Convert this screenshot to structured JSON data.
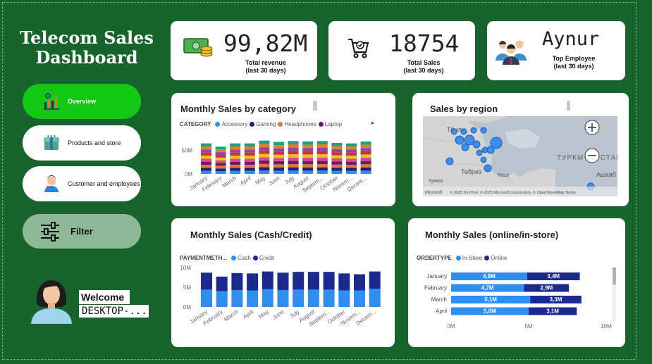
{
  "sidebar": {
    "title_line1": "Telecom Sales",
    "title_line2": "Dashboard",
    "nav": [
      {
        "label": "Overview"
      },
      {
        "label": "Products and store"
      },
      {
        "label": "Customer and employees"
      }
    ],
    "filter_label": "Filter",
    "welcome": "Welcome",
    "user": "DESKTOP-..."
  },
  "kpis": [
    {
      "value": "99,82M",
      "label_line1": "Total revenue",
      "label_line2": "(last 30 days)"
    },
    {
      "value": "18754",
      "label_line1": "Total Sales",
      "label_line2": "(last 30 days)"
    },
    {
      "value": "Aynur",
      "label_line1": "Top Employee",
      "label_line2": "(last 30 days)"
    }
  ],
  "colors": {
    "background": "#17652c",
    "active_nav": "#13c813",
    "filter": "#8fb996",
    "accessory": "#2e8ff0",
    "gaming": "#1a237e",
    "headphones": "#e8703a",
    "laptop": "#6a1b6a",
    "cash": "#2e8ff0",
    "credit": "#1a2a8f",
    "instore": "#2e8ff0",
    "online": "#1a2a8f"
  },
  "chart_data": [
    {
      "type": "bar",
      "title": "Monthly Sales by category",
      "legend_title": "CATEGORY",
      "legend": [
        "Accessory",
        "Gaming",
        "Headphones",
        "Laptop"
      ],
      "categories": [
        "January",
        "February",
        "March",
        "April",
        "May",
        "June",
        "July",
        "August",
        "Septem...",
        "October",
        "Novem...",
        "Decem..."
      ],
      "values": [
        65,
        58,
        65,
        65,
        71,
        68,
        70,
        69,
        70,
        66,
        65,
        69
      ],
      "ylabels": [
        "50M",
        "0M"
      ],
      "ylim": [
        0,
        75
      ],
      "stacked": true
    },
    {
      "type": "bar",
      "title": "Monthly Sales (Cash/Credit)",
      "legend_title": "PAYMENTMETH...",
      "legend": [
        "Cash",
        "Credit"
      ],
      "categories": [
        "January",
        "February",
        "March",
        "April",
        "May",
        "June",
        "July",
        "August",
        "Septem...",
        "October",
        "Novem...",
        "Decem..."
      ],
      "series": [
        {
          "name": "Cash",
          "values": [
            4.4,
            4.0,
            4.3,
            4.2,
            4.5,
            4.3,
            4.4,
            4.4,
            4.4,
            4.2,
            4.2,
            4.6
          ]
        },
        {
          "name": "Credit",
          "values": [
            4.3,
            3.7,
            4.3,
            4.3,
            4.5,
            4.4,
            4.5,
            4.5,
            4.5,
            4.3,
            4.1,
            4.4
          ]
        }
      ],
      "ylabels": [
        "10M",
        "5M",
        "0M"
      ],
      "ylim": [
        0,
        10
      ],
      "stacked": true
    },
    {
      "type": "bar",
      "orientation": "horizontal",
      "title": "Monthly Sales (online/in-store)",
      "legend_title": "ORDERTYPE",
      "legend": [
        "In-Store",
        "Online"
      ],
      "categories": [
        "January",
        "February",
        "March",
        "April"
      ],
      "series": [
        {
          "name": "In-Store",
          "values": [
            4.9,
            4.7,
            5.1,
            5.0
          ],
          "labels": [
            "4,9M",
            "4,7M",
            "5,1M",
            "5,0M"
          ]
        },
        {
          "name": "Online",
          "values": [
            3.4,
            2.9,
            3.3,
            3.1
          ],
          "labels": [
            "3,4M",
            "2,9M",
            "3,3M",
            "3,1M"
          ]
        }
      ],
      "xlabels": [
        "0M",
        "5M",
        "10M"
      ],
      "xlim": [
        0,
        10
      ],
      "stacked": true
    }
  ],
  "map": {
    "title": "Sales by region",
    "labels": [
      "Тбили",
      "Тебриз",
      "Урмия",
      "Решт",
      "ТУРКМ",
      "СТАН",
      "Ашхаб"
    ],
    "attribution": "© 2025 TomTom, © 2025 Microsoft Corporation, © OpenStreetMap Terms",
    "logo": "Microsoft"
  },
  "category_colors": [
    "#2e8ff0",
    "#1a237e",
    "#e8703a",
    "#6a1b6a",
    "#d94c8c",
    "#f0c020",
    "#c0392b",
    "#8e44ad",
    "#e67e22",
    "#16a085"
  ]
}
